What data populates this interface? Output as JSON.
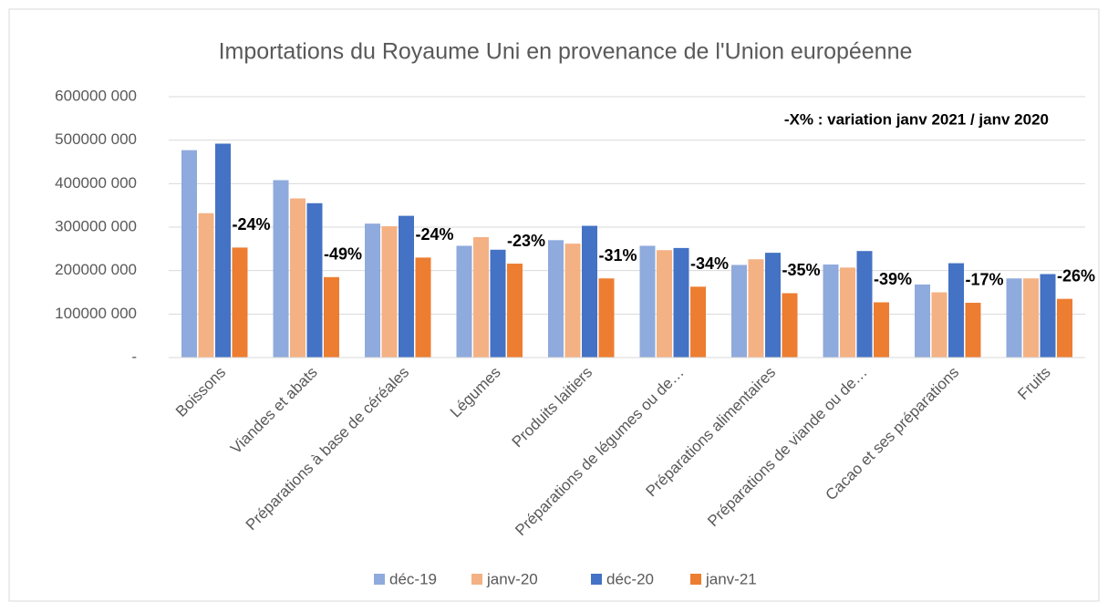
{
  "chart_data": {
    "type": "bar",
    "title": "Importations du  Royaume Uni en provenance de l'Union européenne",
    "note": "-X% : variation janv 2021 / janv 2020",
    "categories": [
      "Boissons",
      "Viandes et abats",
      "Préparations à base de céréales",
      "Légumes",
      "Produits laitiers",
      "Préparations de légumes ou de…",
      "Préparations alimentaires",
      "Préparations de viande ou de…",
      "Cacao et ses préparations",
      "Fruits"
    ],
    "series": [
      {
        "name": "déc-19",
        "color": "#8faadc",
        "values": [
          477000000,
          408000000,
          308000000,
          257000000,
          270000000,
          257000000,
          213000000,
          214000000,
          168000000,
          182000000
        ]
      },
      {
        "name": "janv-20",
        "color": "#f4b183",
        "values": [
          332000000,
          366000000,
          302000000,
          277000000,
          262000000,
          247000000,
          226000000,
          207000000,
          150000000,
          182000000
        ]
      },
      {
        "name": "déc-20",
        "color": "#4472c4",
        "values": [
          492000000,
          355000000,
          326000000,
          248000000,
          303000000,
          252000000,
          241000000,
          245000000,
          217000000,
          192000000
        ]
      },
      {
        "name": "janv-21",
        "color": "#ed7d31",
        "values": [
          253000000,
          185000000,
          230000000,
          216000000,
          182000000,
          163000000,
          148000000,
          127000000,
          126000000,
          135000000
        ]
      }
    ],
    "annotations": [
      "-24%",
      "-49%",
      "-24%",
      "-23%",
      "-31%",
      "-34%",
      "-35%",
      "-39%",
      "-17%",
      "-26%"
    ],
    "ylim": [
      0,
      600000000
    ],
    "yticks": [
      {
        "value": 0,
        "label": "-"
      },
      {
        "value": 100000000,
        "label": "100000 000"
      },
      {
        "value": 200000000,
        "label": "200000 000"
      },
      {
        "value": 300000000,
        "label": "300000 000"
      },
      {
        "value": 400000000,
        "label": "400000 000"
      },
      {
        "value": 500000000,
        "label": "500000 000"
      },
      {
        "value": 600000000,
        "label": "600000 000"
      }
    ],
    "grid": true,
    "legend": "bottom"
  }
}
